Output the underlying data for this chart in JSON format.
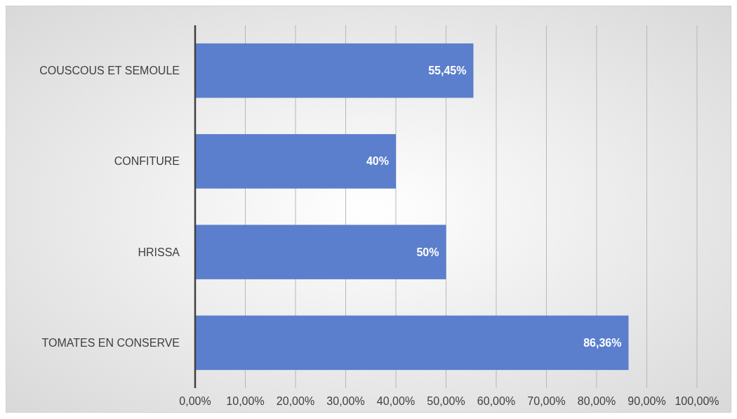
{
  "chart_data": {
    "type": "bar",
    "orientation": "horizontal",
    "categories": [
      "COUSCOUS ET SEMOULE",
      "CONFITURE",
      "HRISSA",
      "TOMATES EN CONSERVE"
    ],
    "values": [
      55.45,
      40,
      50,
      86.36
    ],
    "color": "#5b7fcd",
    "value_labels": [
      "55,45%",
      "40%",
      "50%",
      "86,36%"
    ],
    "xlim": [
      0,
      100
    ],
    "xticks": [
      {
        "value": 0,
        "label": "0,00%"
      },
      {
        "value": 10,
        "label": "10,00%"
      },
      {
        "value": 20,
        "label": "20,00%"
      },
      {
        "value": 30,
        "label": "30,00%"
      },
      {
        "value": 40,
        "label": "40,00%"
      },
      {
        "value": 50,
        "label": "50,00%"
      },
      {
        "value": 60,
        "label": "60,00%"
      },
      {
        "value": 70,
        "label": "70,00%"
      },
      {
        "value": 80,
        "label": "80,00%"
      },
      {
        "value": 90,
        "label": "90,00%"
      },
      {
        "value": 100,
        "label": "100,00%"
      }
    ],
    "grid": "x"
  }
}
